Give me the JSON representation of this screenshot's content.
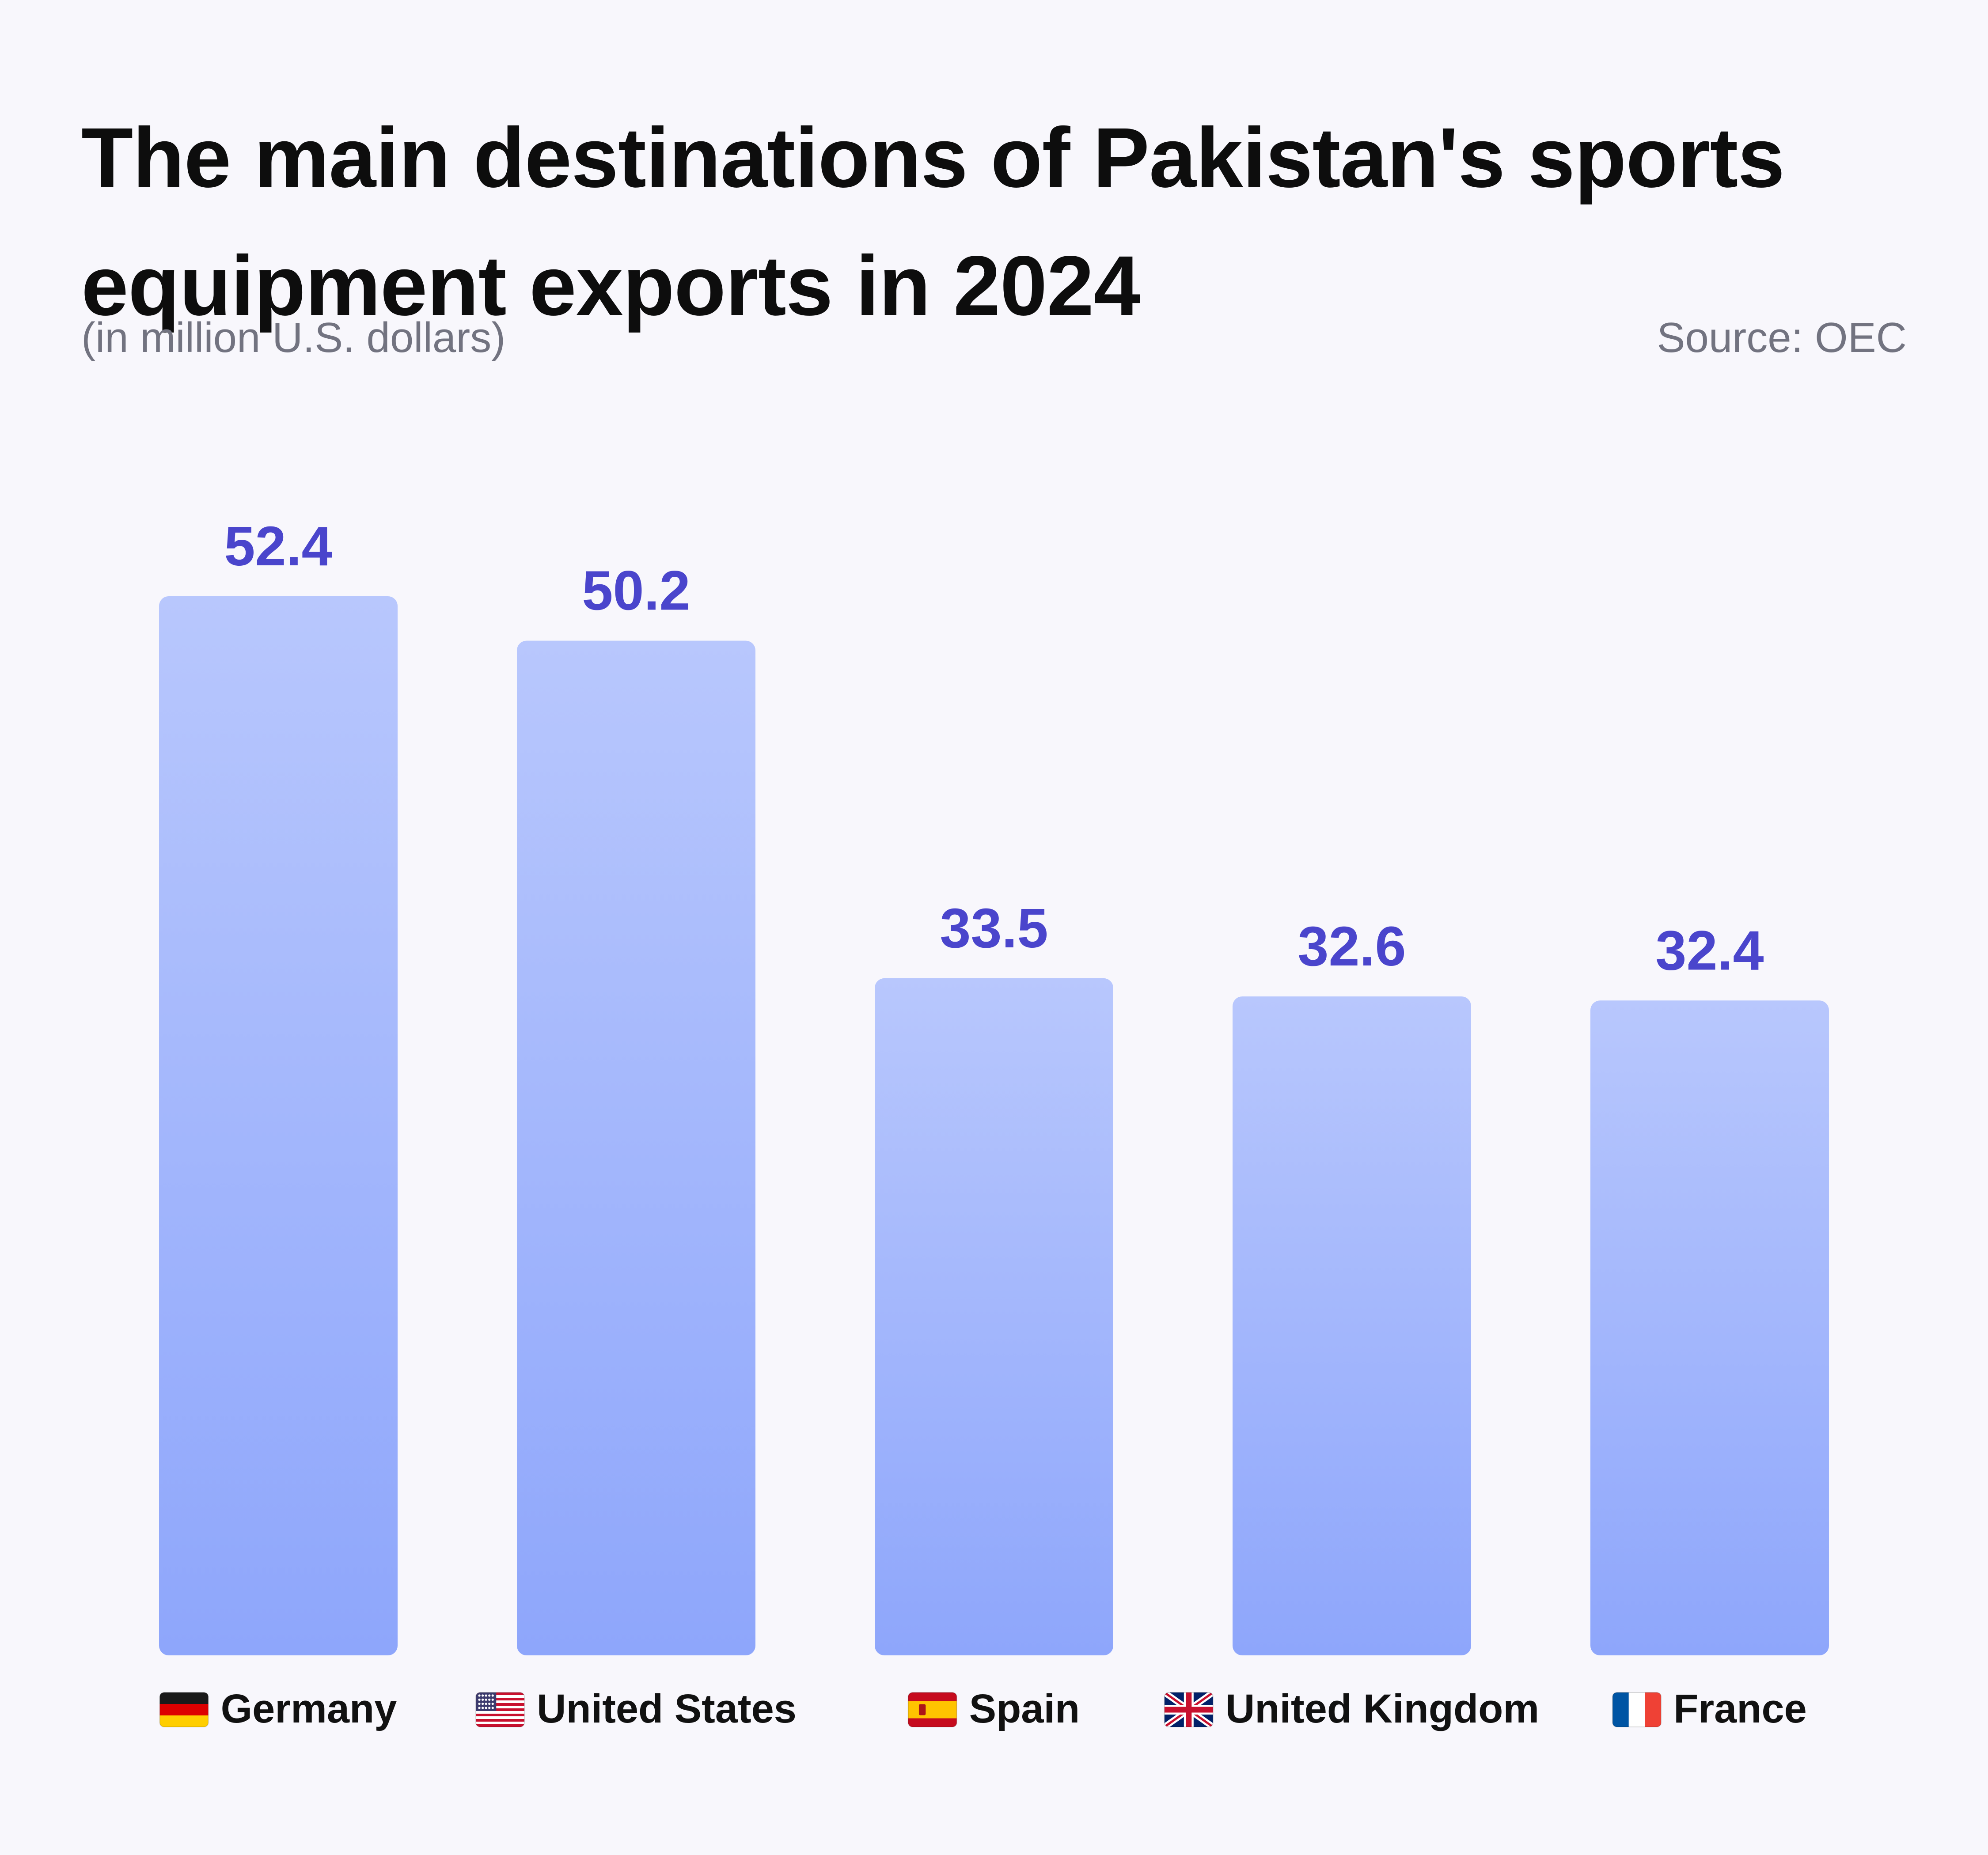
{
  "header": {
    "title": "The main destinations of Pakistan's sports equipment exports in 2024",
    "subtitle": "(in million U.S. dollars)",
    "source": "Source: OEC"
  },
  "colors": {
    "bar_top": "#b8c7fd",
    "bar_bottom": "#8ea6fb",
    "value_label": "#4a45cc",
    "background": "#f8f7fc"
  },
  "chart_data": {
    "type": "bar",
    "title": "The main destinations of Pakistan's sports equipment exports in 2024",
    "subtitle": "(in million U.S. dollars)",
    "xlabel": "",
    "ylabel": "",
    "ylim": [
      0,
      52.4
    ],
    "grid": false,
    "legend": "none",
    "categories": [
      "Germany",
      "United States",
      "Spain",
      "United Kingdom",
      "France"
    ],
    "flags": [
      "germany-flag",
      "united-states-flag",
      "spain-flag",
      "united-kingdom-flag",
      "france-flag"
    ],
    "values": [
      52.4,
      50.2,
      33.5,
      32.6,
      32.4
    ],
    "value_labels": [
      "52.4",
      "50.2",
      "33.5",
      "32.6",
      "32.4"
    ]
  }
}
